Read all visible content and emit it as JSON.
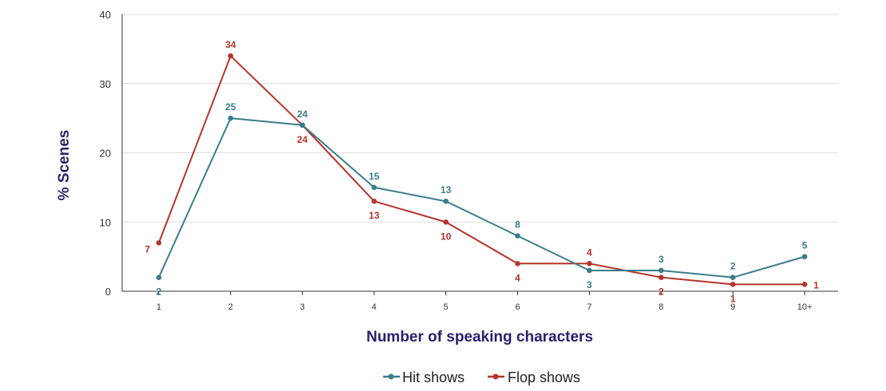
{
  "chart_data": {
    "type": "line",
    "title": "",
    "xlabel": "Number of speaking characters",
    "ylabel": "% Scenes",
    "ylim": [
      0,
      40
    ],
    "yticks": [
      0,
      10,
      20,
      30,
      40
    ],
    "categories": [
      "1",
      "2",
      "3",
      "4",
      "5",
      "6",
      "7",
      "8",
      "9",
      "10+"
    ],
    "grid": true,
    "legend_position": "bottom",
    "series": [
      {
        "name": "Hit shows",
        "color": "#3a7d8a",
        "values": [
          2,
          25,
          24,
          15,
          13,
          8,
          3,
          3,
          2,
          5
        ]
      },
      {
        "name": "Flop shows",
        "color": "#b5352b",
        "values": [
          7,
          34,
          24,
          13,
          10,
          4,
          4,
          2,
          1,
          1
        ]
      }
    ]
  }
}
